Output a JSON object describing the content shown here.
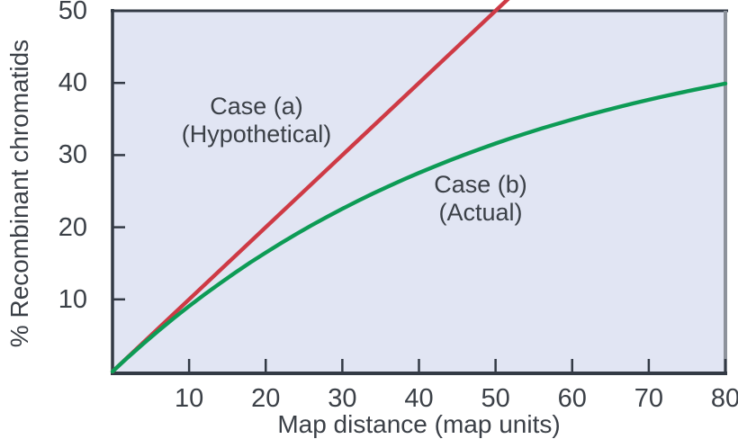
{
  "figure": {
    "colors": {
      "background": "#ffffff",
      "plot_background": "#e1e5f3",
      "frame_dark": "#333a45",
      "frame_right_gray": "#8d929b",
      "text": "#3b4047",
      "case_a_red": "#ce3a45",
      "case_b_green": "#0d9b55"
    }
  },
  "chart_data": {
    "type": "line",
    "title": "",
    "xlabel": "Map distance (map units)",
    "ylabel": "% Recombinant chromatids",
    "xlim": [
      0,
      80
    ],
    "ylim": [
      0,
      50
    ],
    "x_ticks": [
      10,
      20,
      30,
      40,
      50,
      60,
      70,
      80
    ],
    "y_ticks": [
      10,
      20,
      30,
      40,
      50
    ],
    "grid": false,
    "legend_position": "inline annotations",
    "series": [
      {
        "name": "Case (a) (Hypothetical)",
        "color": "#ce3a45",
        "shape": "straight line, % recombinants equals map distance, leaves top of plot at 50% / 50 map units",
        "x": [
          0,
          52
        ],
        "y": [
          0,
          52
        ]
      },
      {
        "name": "Case (b) (Actual)",
        "color": "#0d9b55",
        "shape": "saturating curve approaching 50%, reaches 40% at 80 map units",
        "x": [
          0,
          2,
          4,
          6,
          8,
          10,
          12,
          14,
          16,
          18,
          20,
          22,
          24,
          26,
          28,
          30,
          32,
          34,
          36,
          38,
          40,
          42,
          44,
          46,
          48,
          50,
          52,
          54,
          56,
          58,
          60,
          62,
          64,
          66,
          68,
          70,
          72,
          74,
          76,
          78,
          80
        ],
        "y": [
          0,
          1.96,
          3.84,
          5.65,
          7.39,
          9.06,
          10.67,
          12.21,
          13.69,
          15.12,
          16.48,
          17.8,
          19.06,
          20.27,
          21.44,
          22.56,
          23.64,
          24.67,
          25.66,
          26.62,
          27.53,
          28.41,
          29.26,
          30.07,
          30.85,
          31.61,
          32.33,
          33.02,
          33.69,
          34.32,
          34.94,
          35.53,
          36.1,
          36.64,
          37.17,
          37.67,
          38.15,
          38.62,
          39.06,
          39.49,
          39.91
        ]
      }
    ],
    "annotations": [
      {
        "name": "case-a",
        "lines": [
          "Case (a)",
          "(Hypothetical)"
        ]
      },
      {
        "name": "case-b",
        "lines": [
          "Case (b)",
          "(Actual)"
        ]
      }
    ]
  }
}
